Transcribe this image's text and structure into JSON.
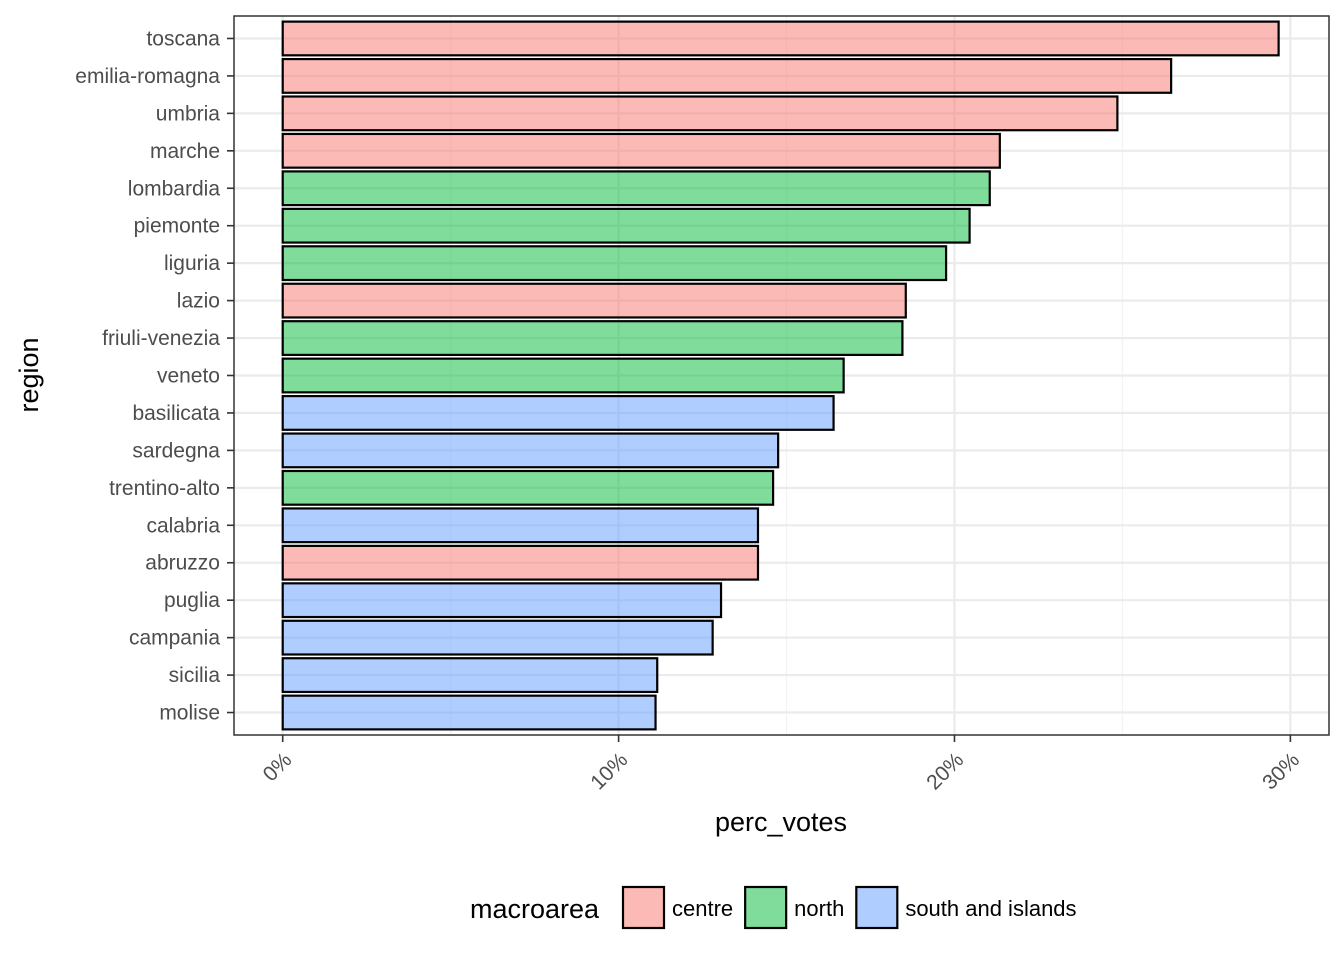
{
  "chart_data": {
    "type": "bar",
    "orientation": "horizontal",
    "xlabel": "perc_votes",
    "ylabel": "region",
    "xlim": [
      -1.45,
      31.15
    ],
    "x_ticks": [
      {
        "value": 0,
        "label": "0%"
      },
      {
        "value": 10,
        "label": "10%"
      },
      {
        "value": 20,
        "label": "20%"
      },
      {
        "value": 30,
        "label": "30%"
      }
    ],
    "grid": true,
    "legend": {
      "title": "macroarea",
      "placement": "bottom",
      "entries": [
        {
          "key": "centre",
          "label": "centre",
          "color": "#F8766D"
        },
        {
          "key": "north",
          "label": "north",
          "color": "#00BA38"
        },
        {
          "key": "south",
          "label": "south and islands",
          "color": "#619CFF"
        }
      ]
    },
    "bars": [
      {
        "region": "toscana",
        "value": 29.65,
        "group": "centre"
      },
      {
        "region": "emilia-romagna",
        "value": 26.45,
        "group": "centre"
      },
      {
        "region": "umbria",
        "value": 24.85,
        "group": "centre"
      },
      {
        "region": "marche",
        "value": 21.35,
        "group": "centre"
      },
      {
        "region": "lombardia",
        "value": 21.05,
        "group": "north"
      },
      {
        "region": "piemonte",
        "value": 20.45,
        "group": "north"
      },
      {
        "region": "liguria",
        "value": 19.75,
        "group": "north"
      },
      {
        "region": "lazio",
        "value": 18.55,
        "group": "centre"
      },
      {
        "region": "friuli-venezia",
        "value": 18.45,
        "group": "north"
      },
      {
        "region": "veneto",
        "value": 16.7,
        "group": "north"
      },
      {
        "region": "basilicata",
        "value": 16.4,
        "group": "south"
      },
      {
        "region": "sardegna",
        "value": 14.75,
        "group": "south"
      },
      {
        "region": "trentino-alto",
        "value": 14.6,
        "group": "north"
      },
      {
        "region": "calabria",
        "value": 14.15,
        "group": "south"
      },
      {
        "region": "abruzzo",
        "value": 14.15,
        "group": "centre"
      },
      {
        "region": "puglia",
        "value": 13.05,
        "group": "south"
      },
      {
        "region": "campania",
        "value": 12.8,
        "group": "south"
      },
      {
        "region": "sicilia",
        "value": 11.15,
        "group": "south"
      },
      {
        "region": "molise",
        "value": 11.1,
        "group": "south"
      }
    ]
  }
}
